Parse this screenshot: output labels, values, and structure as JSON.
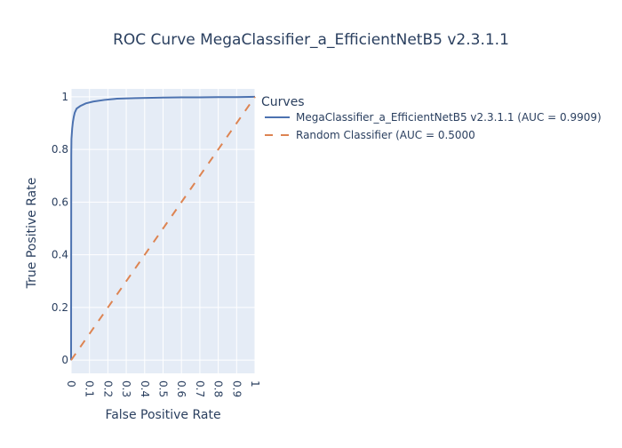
{
  "chart_data": {
    "type": "line",
    "title": "ROC Curve MegaClassifier_a_EfficientNetB5 v2.3.1.1",
    "xlabel": "False Positive Rate",
    "ylabel": "True Positive Rate",
    "xlim": [
      0,
      1
    ],
    "ylim": [
      -0.05,
      1.03
    ],
    "x_ticks": [
      "0",
      "0.1",
      "0.2",
      "0.3",
      "0.4",
      "0.5",
      "0.6",
      "0.7",
      "0.8",
      "0.9",
      "1"
    ],
    "y_ticks": [
      "0",
      "0.2",
      "0.4",
      "0.6",
      "0.8",
      "1"
    ],
    "legend_title": "Curves",
    "legend_position": "right",
    "grid": true,
    "background": "#e5ecf6",
    "series": [
      {
        "name": "MegaClassifier_a_EfficientNetB5 v2.3.1.1 (AUC = 0.9909)",
        "color": "#4c72b0",
        "dash": "solid",
        "x": [
          0,
          0.001,
          0.002,
          0.004,
          0.006,
          0.01,
          0.015,
          0.02,
          0.03,
          0.05,
          0.08,
          0.12,
          0.18,
          0.25,
          0.35,
          0.5,
          0.6,
          0.7,
          0.8,
          0.9,
          1.0
        ],
        "y": [
          0,
          0.78,
          0.84,
          0.86,
          0.88,
          0.905,
          0.925,
          0.94,
          0.955,
          0.965,
          0.975,
          0.982,
          0.988,
          0.993,
          0.995,
          0.997,
          0.998,
          0.998,
          0.999,
          0.999,
          1.0
        ]
      },
      {
        "name": "Random Classifier (AUC = 0.5000",
        "color": "#dd8452",
        "dash": "dash",
        "x": [
          0,
          1
        ],
        "y": [
          0,
          1
        ]
      }
    ]
  }
}
